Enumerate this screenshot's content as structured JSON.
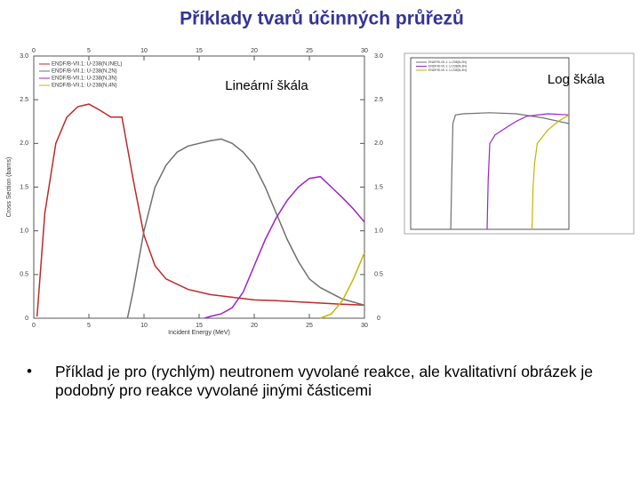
{
  "title": "Příklady tvarů účinných průřezů",
  "bullet": "Příklad je pro (rychlým) neutronem vyvolané reakce, ale kvalitativní obrázek je podobný pro reakce vyvolané jinými částicemi",
  "chart_data": [
    {
      "type": "line",
      "annotation": "Lineární škála",
      "x_label": "Incident Energy (MeV)",
      "y_label": "Cross Section (barns)",
      "xlim": [
        0,
        30
      ],
      "xticks": [
        0,
        5,
        10,
        15,
        20,
        25,
        30
      ],
      "ylim": [
        0,
        3.0
      ],
      "yticks": [
        0,
        0.5,
        {
          "value": 1.0,
          "label": "1.0"
        },
        1.5,
        {
          "value": 2.0,
          "label": "2.0"
        },
        2.5,
        {
          "value": 3.0,
          "label": "3.0"
        }
      ],
      "log_y": false,
      "series": [
        {
          "name": "ENDF/B-VII.1: U-238(N,INEL)",
          "color": "#c0282a",
          "x": [
            0.3,
            1,
            2,
            3,
            4,
            5,
            6,
            7,
            8,
            9,
            10,
            11,
            12,
            14,
            16,
            18,
            20,
            22,
            25,
            28,
            30
          ],
          "values": [
            0.02,
            1.2,
            2.0,
            2.3,
            2.42,
            2.45,
            2.38,
            2.3,
            2.3,
            1.6,
            0.95,
            0.6,
            0.45,
            0.33,
            0.27,
            0.24,
            0.21,
            0.2,
            0.18,
            0.16,
            0.15
          ]
        },
        {
          "name": "ENDF/B-VII.1: U-238(N,2N)",
          "color": "#707070",
          "x": [
            8.5,
            9,
            10,
            11,
            12,
            13,
            14,
            15,
            16,
            17,
            18,
            19,
            20,
            21,
            22,
            23,
            24,
            25,
            26,
            28,
            30
          ],
          "values": [
            0,
            0.3,
            1.0,
            1.5,
            1.75,
            1.9,
            1.97,
            2.0,
            2.03,
            2.05,
            2.0,
            1.9,
            1.75,
            1.5,
            1.2,
            0.9,
            0.65,
            0.45,
            0.35,
            0.22,
            0.15
          ]
        },
        {
          "name": "ENDF/B-VII.1: U-238(N,3N)",
          "color": "#a020c8",
          "x": [
            15.5,
            16,
            17,
            18,
            19,
            20,
            21,
            22,
            23,
            24,
            25,
            26,
            27,
            28,
            29,
            30
          ],
          "values": [
            0,
            0.02,
            0.05,
            0.12,
            0.3,
            0.6,
            0.9,
            1.15,
            1.35,
            1.5,
            1.6,
            1.62,
            1.5,
            1.38,
            1.25,
            1.1
          ]
        },
        {
          "name": "ENDF/B-VII.1: U-238(N,4N)",
          "color": "#c8b400",
          "x": [
            26,
            27,
            28,
            29,
            30
          ],
          "values": [
            0,
            0.05,
            0.2,
            0.45,
            0.75
          ]
        }
      ]
    },
    {
      "type": "line",
      "annotation": "Log škála",
      "xlim": [
        0,
        30
      ],
      "ylim": [
        0.0001,
        100
      ],
      "log_y": true,
      "series": [
        {
          "name": "ENDF/B-VII.1: U-238(N,2N)",
          "color": "#707070",
          "x": [
            7.6,
            7.8,
            8,
            8.5,
            10,
            15,
            20,
            25,
            30
          ],
          "values": [
            0.0001,
            0.01,
            0.5,
            1,
            1.1,
            1.2,
            1.1,
            0.8,
            0.5
          ]
        },
        {
          "name": "ENDF/B-VII.1: U-238(N,3N)",
          "color": "#a020c8",
          "x": [
            14.5,
            14.7,
            15,
            16,
            18,
            20,
            22,
            26,
            30
          ],
          "values": [
            0.0001,
            0.005,
            0.1,
            0.2,
            0.35,
            0.6,
            0.9,
            1.1,
            1.0
          ]
        },
        {
          "name": "ENDF/B-VII.1: U-238(N,4N)",
          "color": "#c8b400",
          "x": [
            23,
            23.2,
            23.5,
            24,
            26,
            28,
            30
          ],
          "values": [
            0.0001,
            0.003,
            0.02,
            0.1,
            0.3,
            0.6,
            1
          ]
        }
      ]
    }
  ]
}
